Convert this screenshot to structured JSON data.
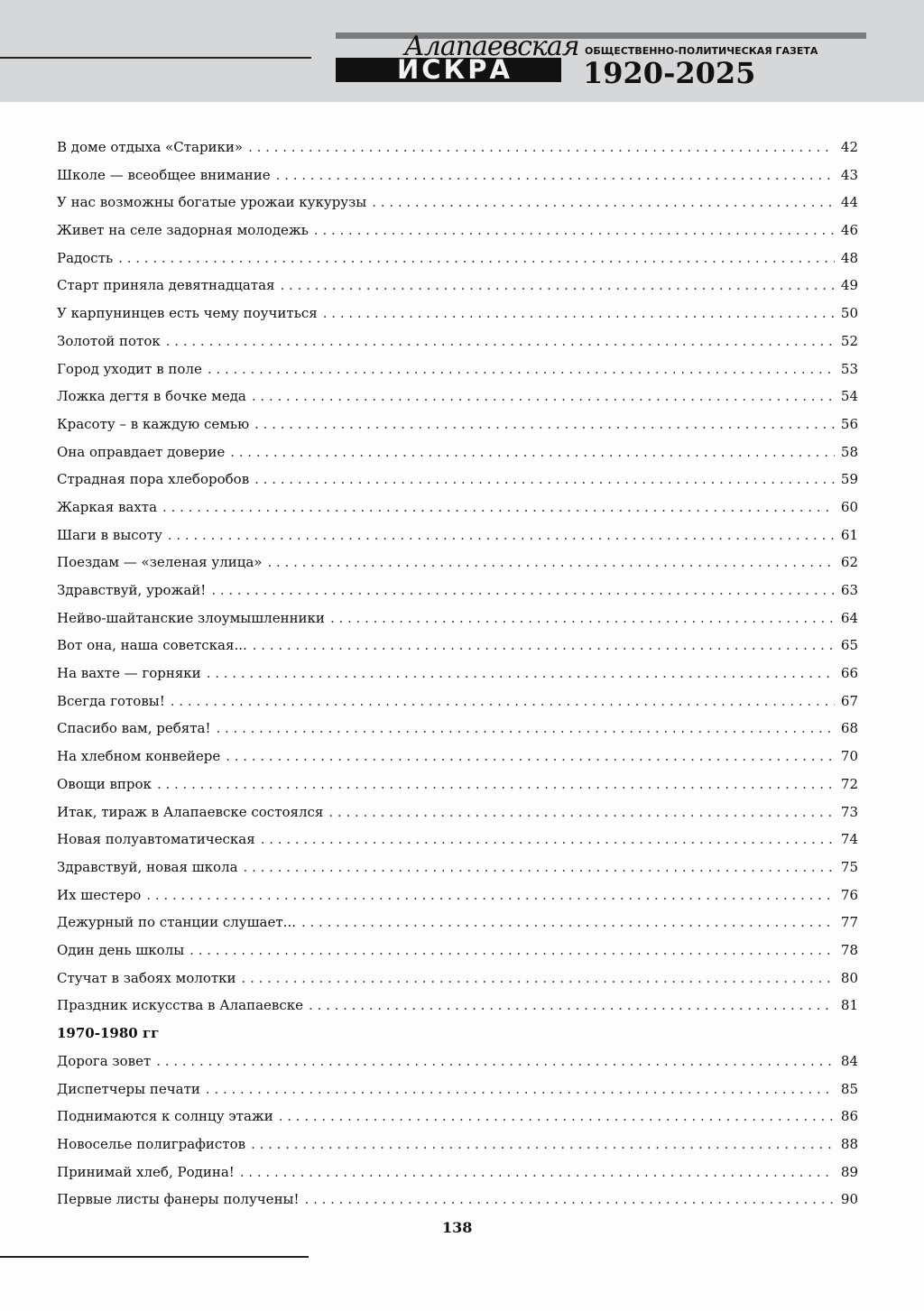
{
  "header": {
    "logo_script": "Алапаевская",
    "logo_main": "ИСКРА",
    "subtitle": "ОБЩЕСТВЕННО-ПОЛИТИЧЕСКАЯ ГАЗЕТА",
    "years": "1920-2025"
  },
  "toc": {
    "entries_a": [
      {
        "title": "В доме отдыха «Старики»",
        "page": "42"
      },
      {
        "title": "Школе — всеобщее внимание",
        "page": "43"
      },
      {
        "title": "У нас возможны богатые урожаи кукурузы",
        "page": "44"
      },
      {
        "title": "Живет на селе задорная молодежь",
        "page": "46"
      },
      {
        "title": "Радость",
        "page": "48"
      },
      {
        "title": "Старт приняла девятнадцатая",
        "page": "49"
      },
      {
        "title": "У карпунинцев есть чему поучиться",
        "page": "50"
      },
      {
        "title": "Золотой поток",
        "page": "52"
      },
      {
        "title": "Город уходит в поле",
        "page": "53"
      },
      {
        "title": "Ложка дегтя в бочке меда",
        "page": "54"
      },
      {
        "title": "Красоту – в каждую семью",
        "page": "56"
      },
      {
        "title": "Она оправдает доверие",
        "page": "58"
      },
      {
        "title": "Страдная пора хлеборобов",
        "page": "59"
      },
      {
        "title": "Жаркая вахта",
        "page": "60"
      },
      {
        "title": "Шаги в высоту",
        "page": "61"
      },
      {
        "title": "Поездам — «зеленая улица»",
        "page": "62"
      },
      {
        "title": "Здравствуй, урожай!",
        "page": "63"
      },
      {
        "title": "Нейво-шайтанские злоумышленники",
        "page": "64"
      },
      {
        "title": "Вот она, наша советская...",
        "page": "65"
      },
      {
        "title": "На вахте — горняки",
        "page": "66"
      },
      {
        "title": "Всегда готовы!",
        "page": "67"
      },
      {
        "title": "Спасибо вам, ребята!",
        "page": "68"
      },
      {
        "title": "На хлебном конвейере",
        "page": "70"
      },
      {
        "title": "Овощи впрок",
        "page": "72"
      },
      {
        "title": "Итак, тираж в Алапаевске состоялся",
        "page": "73"
      },
      {
        "title": "Новая полуавтоматическая",
        "page": "74"
      },
      {
        "title": "Здравствуй, новая школа",
        "page": "75"
      },
      {
        "title": "Их шестеро",
        "page": "76"
      },
      {
        "title": "Дежурный по станции слушает...",
        "page": "77"
      },
      {
        "title": "Один день школы",
        "page": "78"
      },
      {
        "title": "Стучат в забоях молотки",
        "page": "80"
      },
      {
        "title": "Праздник искусства в Алапаевске",
        "page": "81"
      }
    ],
    "section_heading": "1970-1980 гг",
    "entries_b": [
      {
        "title": "Дорога зовет",
        "page": "84"
      },
      {
        "title": "Диспетчеры печати",
        "page": "85"
      },
      {
        "title": "Поднимаются к солнцу этажи",
        "page": "86"
      },
      {
        "title": "Новоселье полиграфистов",
        "page": "88"
      },
      {
        "title": "Принимай хлеб, Родина!",
        "page": "89"
      },
      {
        "title": "Первые листы фанеры получены!",
        "page": "90"
      }
    ]
  },
  "footer": {
    "page_number": "138"
  }
}
